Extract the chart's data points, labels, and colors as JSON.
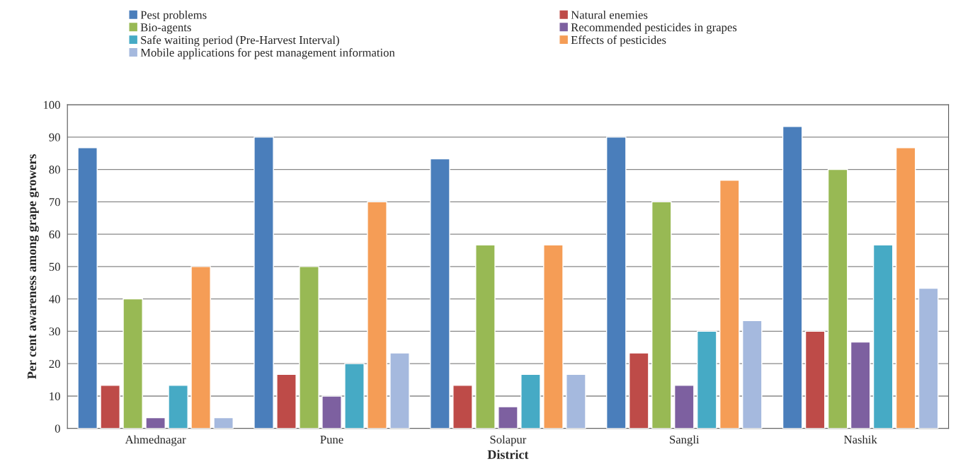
{
  "chart_data": {
    "type": "bar",
    "xlabel": "District",
    "ylabel": "Per cent awareness among grape growers",
    "categories": [
      "Ahmednagar",
      "Pune",
      "Solapur",
      "Sangli",
      "Nashik"
    ],
    "series": [
      {
        "name": "Pest problems",
        "color": "#4a7ebb",
        "values": [
          86.7,
          90,
          83.3,
          90,
          93.3
        ]
      },
      {
        "name": "Natural enemies",
        "color": "#be4b48",
        "values": [
          13.3,
          16.7,
          13.3,
          23.3,
          30
        ]
      },
      {
        "name": "Bio-agents",
        "color": "#98b954",
        "values": [
          40,
          50,
          56.7,
          70,
          80
        ]
      },
      {
        "name": "Recommended pesticides in grapes",
        "color": "#7d60a0",
        "values": [
          3.3,
          10,
          6.7,
          13.3,
          26.7
        ]
      },
      {
        "name": "Safe waiting period (Pre-Harvest Interval)",
        "color": "#46aac5",
        "values": [
          13.3,
          20,
          16.7,
          30,
          56.7
        ]
      },
      {
        "name": "Effects of pesticides",
        "color": "#f59d56",
        "values": [
          50,
          70,
          56.7,
          76.7,
          86.7
        ]
      },
      {
        "name": "Mobile applications for pest management information",
        "color": "#a5b9de",
        "values": [
          3.3,
          23.3,
          16.7,
          33.3,
          43.3
        ]
      }
    ],
    "ylim": [
      0,
      100
    ],
    "yticks": [
      0,
      10,
      20,
      30,
      40,
      50,
      60,
      70,
      80,
      90,
      100
    ],
    "grid": "y",
    "legend": "top"
  }
}
